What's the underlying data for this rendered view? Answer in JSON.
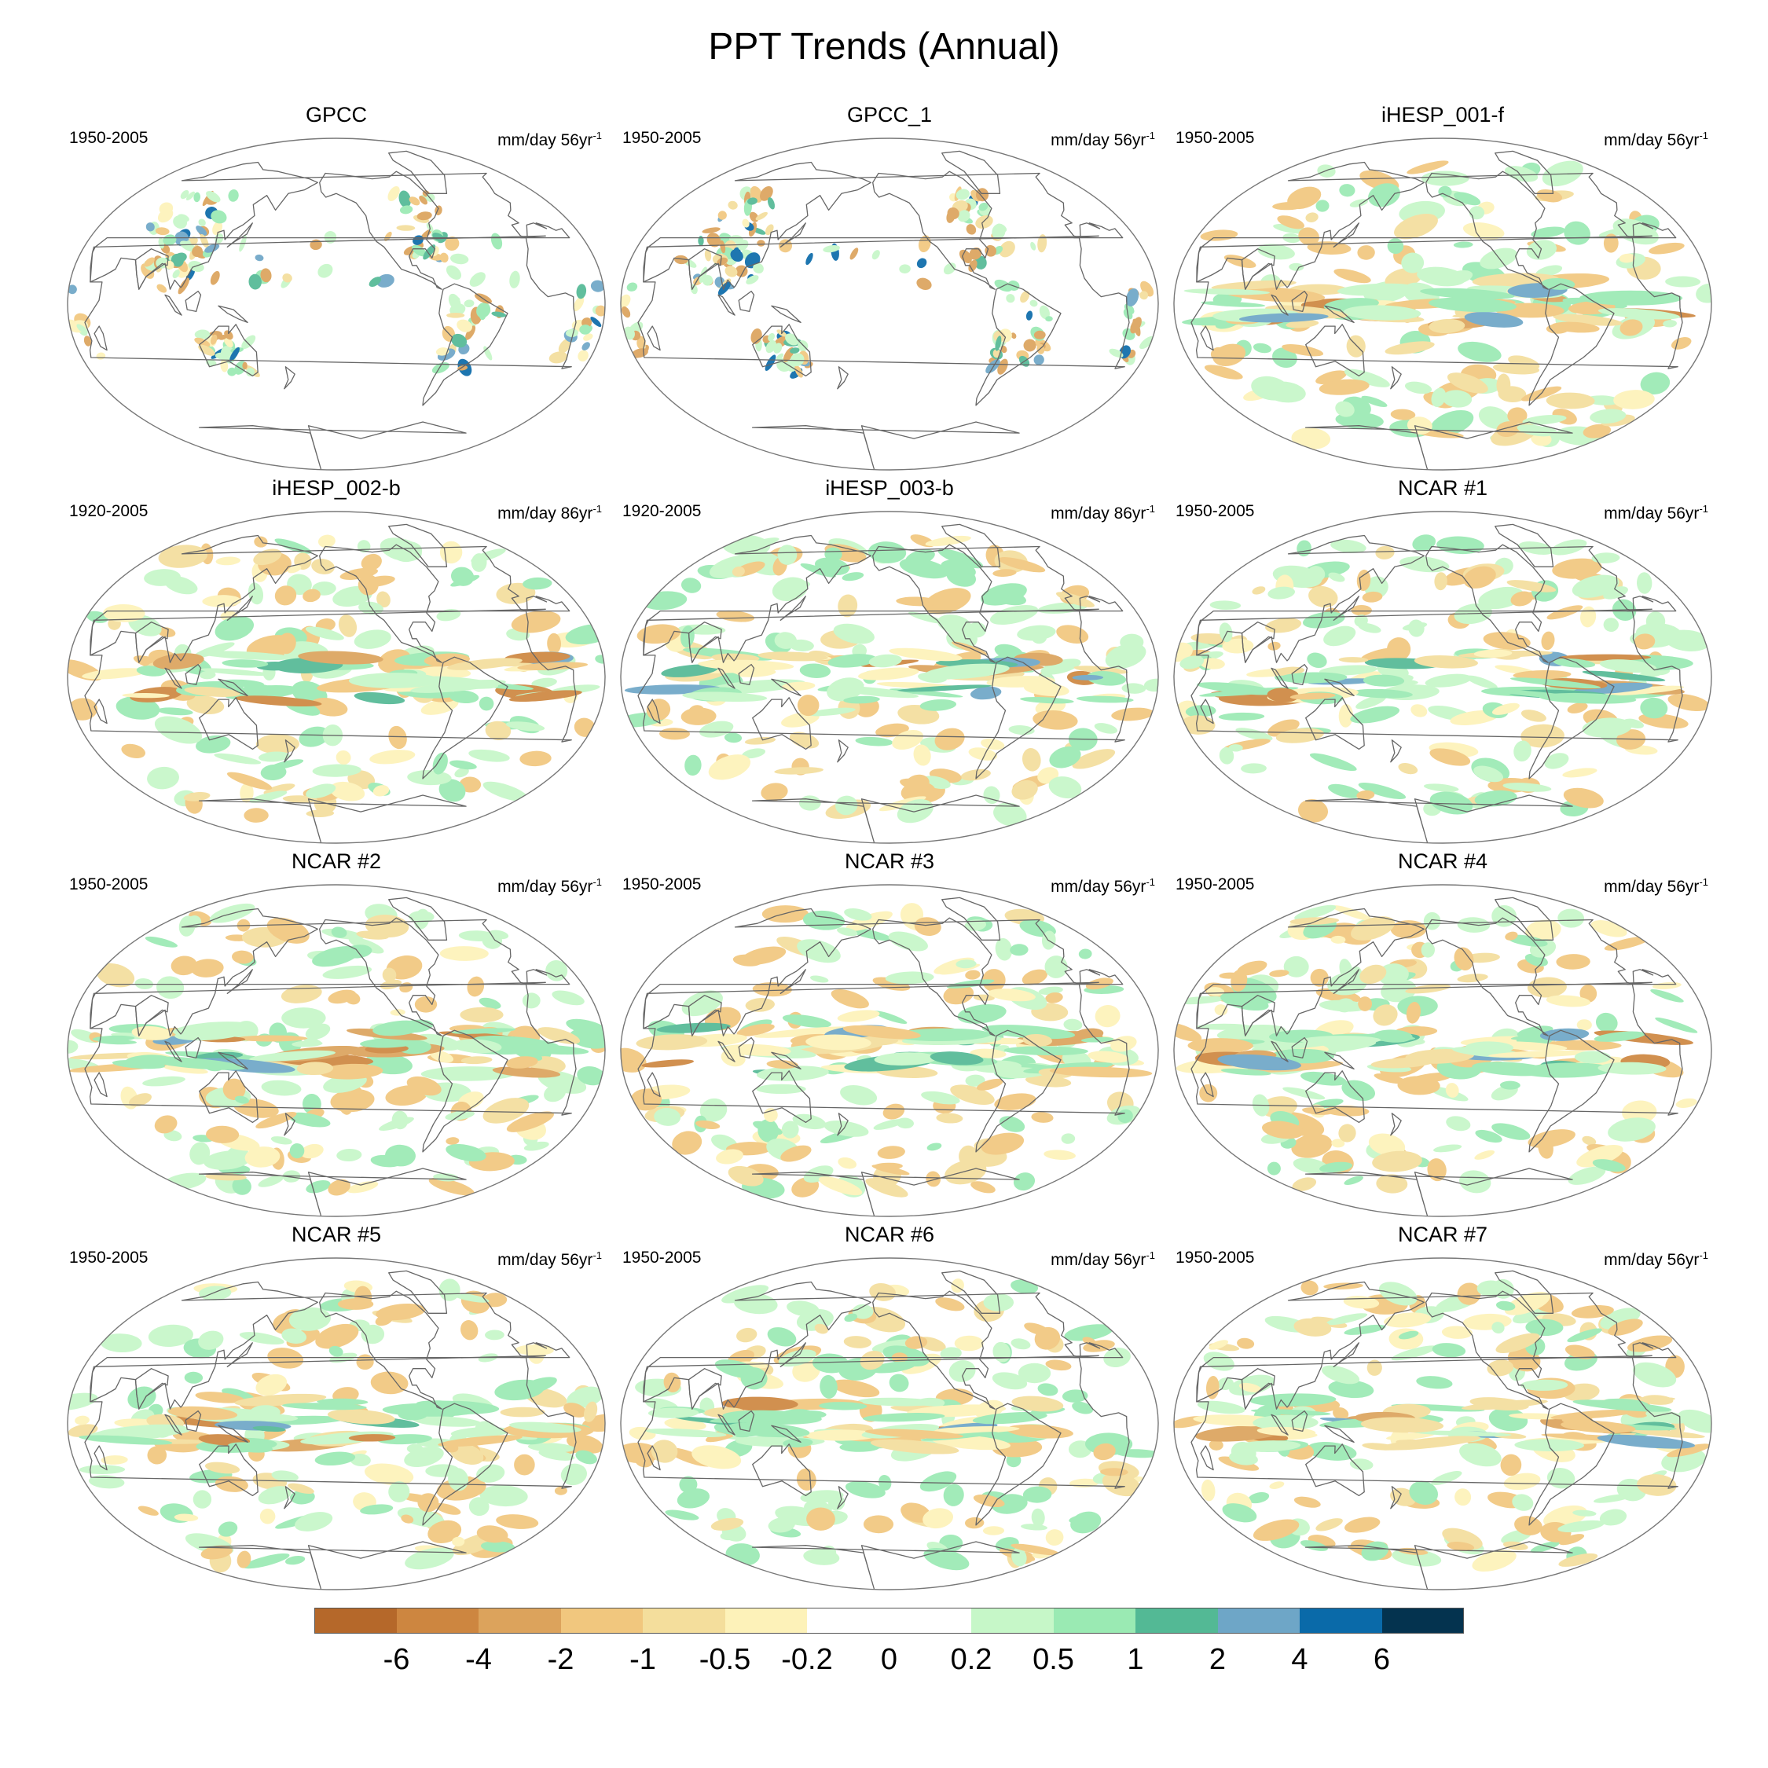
{
  "title": "PPT Trends (Annual)",
  "panels": [
    {
      "title": "GPCC",
      "period": "1950-2005",
      "units": "mm/day 56yr",
      "unit_exp": "-1",
      "coverage": "land"
    },
    {
      "title": "GPCC_1",
      "period": "1950-2005",
      "units": "mm/day 56yr",
      "unit_exp": "-1",
      "coverage": "land"
    },
    {
      "title": "iHESP_001-f",
      "period": "1950-2005",
      "units": "mm/day 56yr",
      "unit_exp": "-1",
      "coverage": "global"
    },
    {
      "title": "iHESP_002-b",
      "period": "1920-2005",
      "units": "mm/day 86yr",
      "unit_exp": "-1",
      "coverage": "global"
    },
    {
      "title": "iHESP_003-b",
      "period": "1920-2005",
      "units": "mm/day 86yr",
      "unit_exp": "-1",
      "coverage": "global"
    },
    {
      "title": "NCAR #1",
      "period": "1950-2005",
      "units": "mm/day 56yr",
      "unit_exp": "-1",
      "coverage": "global"
    },
    {
      "title": "NCAR #2",
      "period": "1950-2005",
      "units": "mm/day 56yr",
      "unit_exp": "-1",
      "coverage": "global"
    },
    {
      "title": "NCAR #3",
      "period": "1950-2005",
      "units": "mm/day 56yr",
      "unit_exp": "-1",
      "coverage": "global"
    },
    {
      "title": "NCAR #4",
      "period": "1950-2005",
      "units": "mm/day 56yr",
      "unit_exp": "-1",
      "coverage": "global"
    },
    {
      "title": "NCAR #5",
      "period": "1950-2005",
      "units": "mm/day 56yr",
      "unit_exp": "-1",
      "coverage": "global"
    },
    {
      "title": "NCAR #6",
      "period": "1950-2005",
      "units": "mm/day 56yr",
      "unit_exp": "-1",
      "coverage": "global"
    },
    {
      "title": "NCAR #7",
      "period": "1950-2005",
      "units": "mm/day 56yr",
      "unit_exp": "-1",
      "coverage": "global"
    }
  ],
  "colorbar": {
    "colors": [
      "#b5682a",
      "#cd8640",
      "#dca35c",
      "#f1c77e",
      "#f4de9c",
      "#fdf2b9",
      "#ffffff",
      "#ffffff",
      "#c6f7c8",
      "#9aeab3",
      "#53b995",
      "#6ea6c7",
      "#0a6aa9",
      "#04334f"
    ],
    "ticks": [
      "-6",
      "-4",
      "-2",
      "-1",
      "-0.5",
      "-0.2",
      "0",
      "0.2",
      "0.5",
      "1",
      "2",
      "4",
      "6"
    ]
  }
}
